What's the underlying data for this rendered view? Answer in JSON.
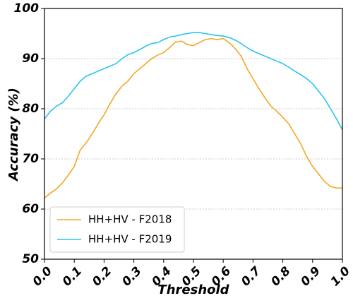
{
  "chart_data": {
    "type": "line",
    "xlabel": "Threshold",
    "ylabel": "Accuracy (%)",
    "x": [
      0,
      0.02,
      0.04,
      0.06,
      0.08,
      0.1,
      0.12,
      0.14,
      0.16,
      0.18,
      0.2,
      0.22,
      0.24,
      0.26,
      0.28,
      0.3,
      0.32,
      0.34,
      0.36,
      0.38,
      0.4,
      0.42,
      0.44,
      0.46,
      0.48,
      0.5,
      0.52,
      0.54,
      0.56,
      0.58,
      0.6,
      0.62,
      0.64,
      0.66,
      0.68,
      0.7,
      0.72,
      0.74,
      0.76,
      0.78,
      0.8,
      0.82,
      0.84,
      0.86,
      0.88,
      0.9,
      0.92,
      0.94,
      0.96,
      0.98,
      1
    ],
    "series": [
      {
        "name": "HH+HV - F2018",
        "color": "#f5a623",
        "values": [
          62.2,
          63.2,
          64,
          65.2,
          66.8,
          68.5,
          71.8,
          73.2,
          75,
          77,
          78.8,
          81,
          83,
          84.5,
          85.5,
          87,
          88,
          89,
          90,
          90.7,
          91.2,
          92.2,
          93.3,
          93.5,
          92.8,
          92.6,
          93.2,
          93.8,
          94,
          93.8,
          94,
          93.2,
          92,
          90.5,
          88,
          86,
          84,
          82.2,
          80.5,
          79.5,
          78.3,
          77,
          75,
          73,
          70.5,
          68.5,
          67,
          65.5,
          64.5,
          64.2,
          64.2
        ]
      },
      {
        "name": "HH+HV - F2019",
        "color": "#29c4f0",
        "values": [
          78,
          79.5,
          80.5,
          81.2,
          82.5,
          84,
          85.5,
          86.5,
          87,
          87.5,
          88,
          88.5,
          89,
          90,
          90.8,
          91.2,
          91.8,
          92.5,
          93,
          93.2,
          93.8,
          94.3,
          94.5,
          94.8,
          95,
          95.2,
          95.2,
          95,
          94.8,
          94.6,
          94.5,
          94.2,
          93.7,
          93,
          92.2,
          91.5,
          91,
          90.5,
          90,
          89.5,
          89,
          88.3,
          87.5,
          86.8,
          86,
          85,
          83.5,
          82,
          80,
          78,
          75.8
        ]
      }
    ],
    "xlim": [
      0,
      1
    ],
    "xticks": [
      {
        "value": 0,
        "label": "0.0"
      },
      0.1,
      0.2,
      0.3,
      0.4,
      0.5,
      0.6,
      0.7,
      0.8,
      0.9,
      {
        "value": 1,
        "label": "1.0"
      }
    ],
    "ylim": [
      50,
      100
    ],
    "yticks": [
      50,
      60,
      70,
      80,
      90,
      100
    ],
    "grid": true,
    "legend": "lower left"
  }
}
